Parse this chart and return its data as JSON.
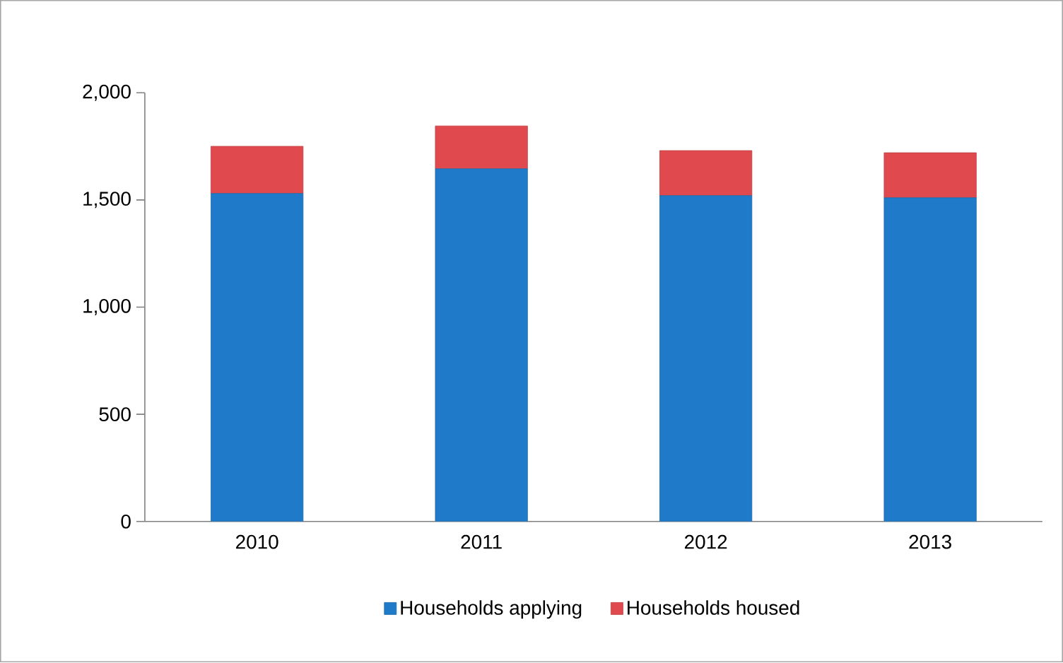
{
  "chart_data": {
    "type": "bar",
    "stacked": true,
    "categories": [
      "2010",
      "2011",
      "2012",
      "2013"
    ],
    "series": [
      {
        "name": "Households applying",
        "color": "#1f7bc9",
        "values": [
          1530,
          1645,
          1520,
          1510
        ]
      },
      {
        "name": "Households housed",
        "color": "#e04a4e",
        "values": [
          220,
          200,
          210,
          210
        ]
      }
    ],
    "ylim": [
      0,
      2000
    ],
    "yticks": [
      {
        "value": 0,
        "label": "0"
      },
      {
        "value": 500,
        "label": "500"
      },
      {
        "value": 1000,
        "label": "1,000"
      },
      {
        "value": 1500,
        "label": "1,500"
      },
      {
        "value": 2000,
        "label": "2,000"
      }
    ],
    "grid": false,
    "legend": "bottom"
  }
}
